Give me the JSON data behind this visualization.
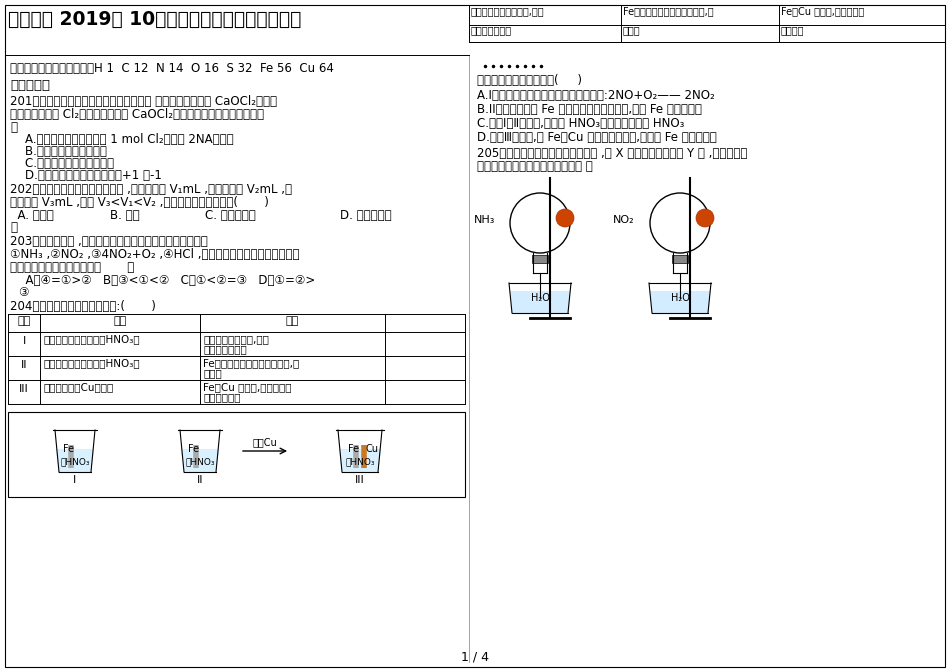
{
  "title_left": "阜阳三中 2019届 10月份高三第五次周考化学试题",
  "page": "1 / 4",
  "top_table_col1_r1": "外表产生大量无色气泡,液面",
  "top_table_col1_r2": "上方变为红棕色",
  "top_table_col2_r1": "Fe外表产生少量红棕色气泡后,迅",
  "top_table_col2_r2": "速停止",
  "top_table_col3_r1": "Fe、Cu 接触后,其外表均产",
  "top_table_col3_r2": "棕色气泡",
  "atomic_masses": "可能用到的相对原子质量：H 1  C 12  N 14  O 16  S 32  Fe 56  Cu 64",
  "section1": "一、选择题",
  "q201_l1": "201．由一种阳离子与两种酸根离子组成的 盐称为混盐。混盐 CaOCl₂在酸性",
  "q201_l2": "条件下可以产生 Cl₂。以下关于混盐 CaOCl₂的有关判断不正确的选项是【",
  "q201_l3": "】",
  "q201_a": "    A.该混盐与硫酸反响产生 1 mol Cl₂时转移 2NA个电子",
  "q201_b": "    B.该混盐的水溶液呼碱性",
  "q201_c": "    C.该混盐具有较强的氧化性",
  "q201_d": "    D.该混盐中氯元素的化合价为+1 和-1",
  "q202_l1": "202．用某种仪器量一液体体积时 ,平视读数为 V₁mL ,仰视读数为 V₂mL ,俧",
  "q202_l2": "视读数为 V₃mL ,假设 V₃<V₁<V₂ ,那么所使用仪器可能是(       )",
  "q202_a": "  A. 容量瓶",
  "q202_b": "B. 量筒",
  "q202_c": "C. 碘式滴定管",
  "q202_d": "D. 以上仪器均",
  "q202_d2": "可",
  "q203_l1": "203．同温同压下 ,两个等体积的枯燥圆底烧瓶中分别充满：",
  "q203_l2": "①NH₃ ,②NO₂ ,③4NO₂+O₂ ,④HCl ,进行噴泉实验．经充分反响后，",
  "q203_l3": "瓶内溶液的物质的量浓度为【       】",
  "q203_a": "  A．④=①>②   B．③<①<②   C．①<②=③   D．①=②>",
  "q203_a2": "③",
  "q204_l1": "204．在通风橱中进行以下实验:(       )",
  "table_headers": [
    "序号",
    "操作",
    "现象",
    ""
  ],
  "table_r1c1": "I",
  "table_r1c2": "将光亮铁片插入足量稀HNO₃中",
  "table_r1c3_1": "产生大量无色气泡,液面",
  "table_r1c3_2": "上方变为红棕色",
  "table_r2c1": "II",
  "table_r2c2": "将光亮铁片插入少量浓HNO₃中",
  "table_r2c3_1": "Fe外表产生少量红棕色气泡后,迅",
  "table_r2c3_2": "速停止",
  "table_r3c1": "III",
  "table_r3c2": "将光亮铁片与Cu接触后",
  "table_r3c3_1": "Fe、Cu 接触后,其外表均产",
  "table_r3c3_2": "生红棕色气泡",
  "q204_q": "以下说法不正确的选项是(     )",
  "q204_a": "A.I中气体由无色变红棕色的化学方程式:2NO+O₂—— 2NO₂",
  "q204_b": "B.II中的现象说明 Fe 外表形成致密的氧化层,阻止 Fe 进一步反响",
  "q204_c": "C.比照Ⅰ、Ⅱ中现象,说明稀 HNO₃的氧化性强于浓 HNO₃",
  "q204_d": "D.针对Ⅲ中现象,在 Fe、Cu 之间连接电流计,可判断 Fe 是否被氧化",
  "q205_l1": "205．利用如下图装置进行以下实验 ,将 X 溶液逐滴参加固体 Y 中 ,以下关于试",
  "q205_l2": "管中的现象描述不正确的选项是（ ）"
}
